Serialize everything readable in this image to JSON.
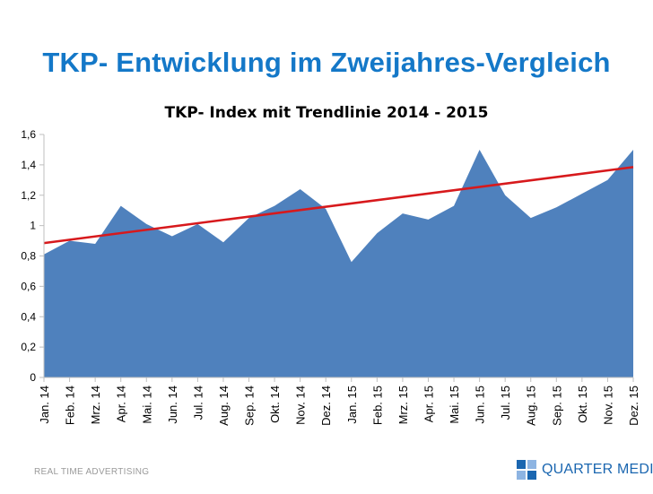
{
  "slide": {
    "title": "TKP- Entwicklung im Zweijahres-Vergleich",
    "footer_left": "REAL TIME ADVERTISING",
    "logo_text": "QUARTER MEDIA"
  },
  "colors": {
    "title": "#1478c8",
    "area_fill": "#4f81bd",
    "trendline": "#d7191c",
    "axis": "#bfbfbf",
    "logo": "#1a66b0"
  },
  "chart_data": {
    "type": "area",
    "title": "TKP- Index mit Trendlinie 2014 - 2015",
    "xlabel": "",
    "ylabel": "",
    "ylim": [
      0,
      1.6
    ],
    "yticks": [
      0,
      0.2,
      0.4,
      0.6,
      0.8,
      1,
      1.2,
      1.4,
      1.6
    ],
    "ytick_labels": [
      "0",
      "0,2",
      "0,4",
      "0,6",
      "0,8",
      "1",
      "1,2",
      "1,4",
      "1,6"
    ],
    "grid": false,
    "legend": "none",
    "categories": [
      "Jan. 14",
      "Feb. 14",
      "Mrz. 14",
      "Apr. 14",
      "Mai. 14",
      "Jun. 14",
      "Jul. 14",
      "Aug. 14",
      "Sep. 14",
      "Okt. 14",
      "Nov. 14",
      "Dez. 14",
      "Jan. 15",
      "Feb. 15",
      "Mrz. 15",
      "Apr. 15",
      "Mai. 15",
      "Jun. 15",
      "Jul. 15",
      "Aug. 15",
      "Sep. 15",
      "Okt. 15",
      "Nov. 15",
      "Dez. 15"
    ],
    "series": [
      {
        "name": "TKP- Index",
        "values": [
          0.81,
          0.9,
          0.88,
          1.13,
          1.01,
          0.93,
          1.01,
          0.89,
          1.05,
          1.13,
          1.24,
          1.11,
          0.76,
          0.95,
          1.08,
          1.04,
          1.13,
          1.5,
          1.2,
          1.05,
          1.12,
          1.21,
          1.3,
          1.5
        ]
      }
    ],
    "trendline": {
      "name": "Trendlinie",
      "type": "linear",
      "start": 0.885,
      "end": 1.385
    }
  }
}
